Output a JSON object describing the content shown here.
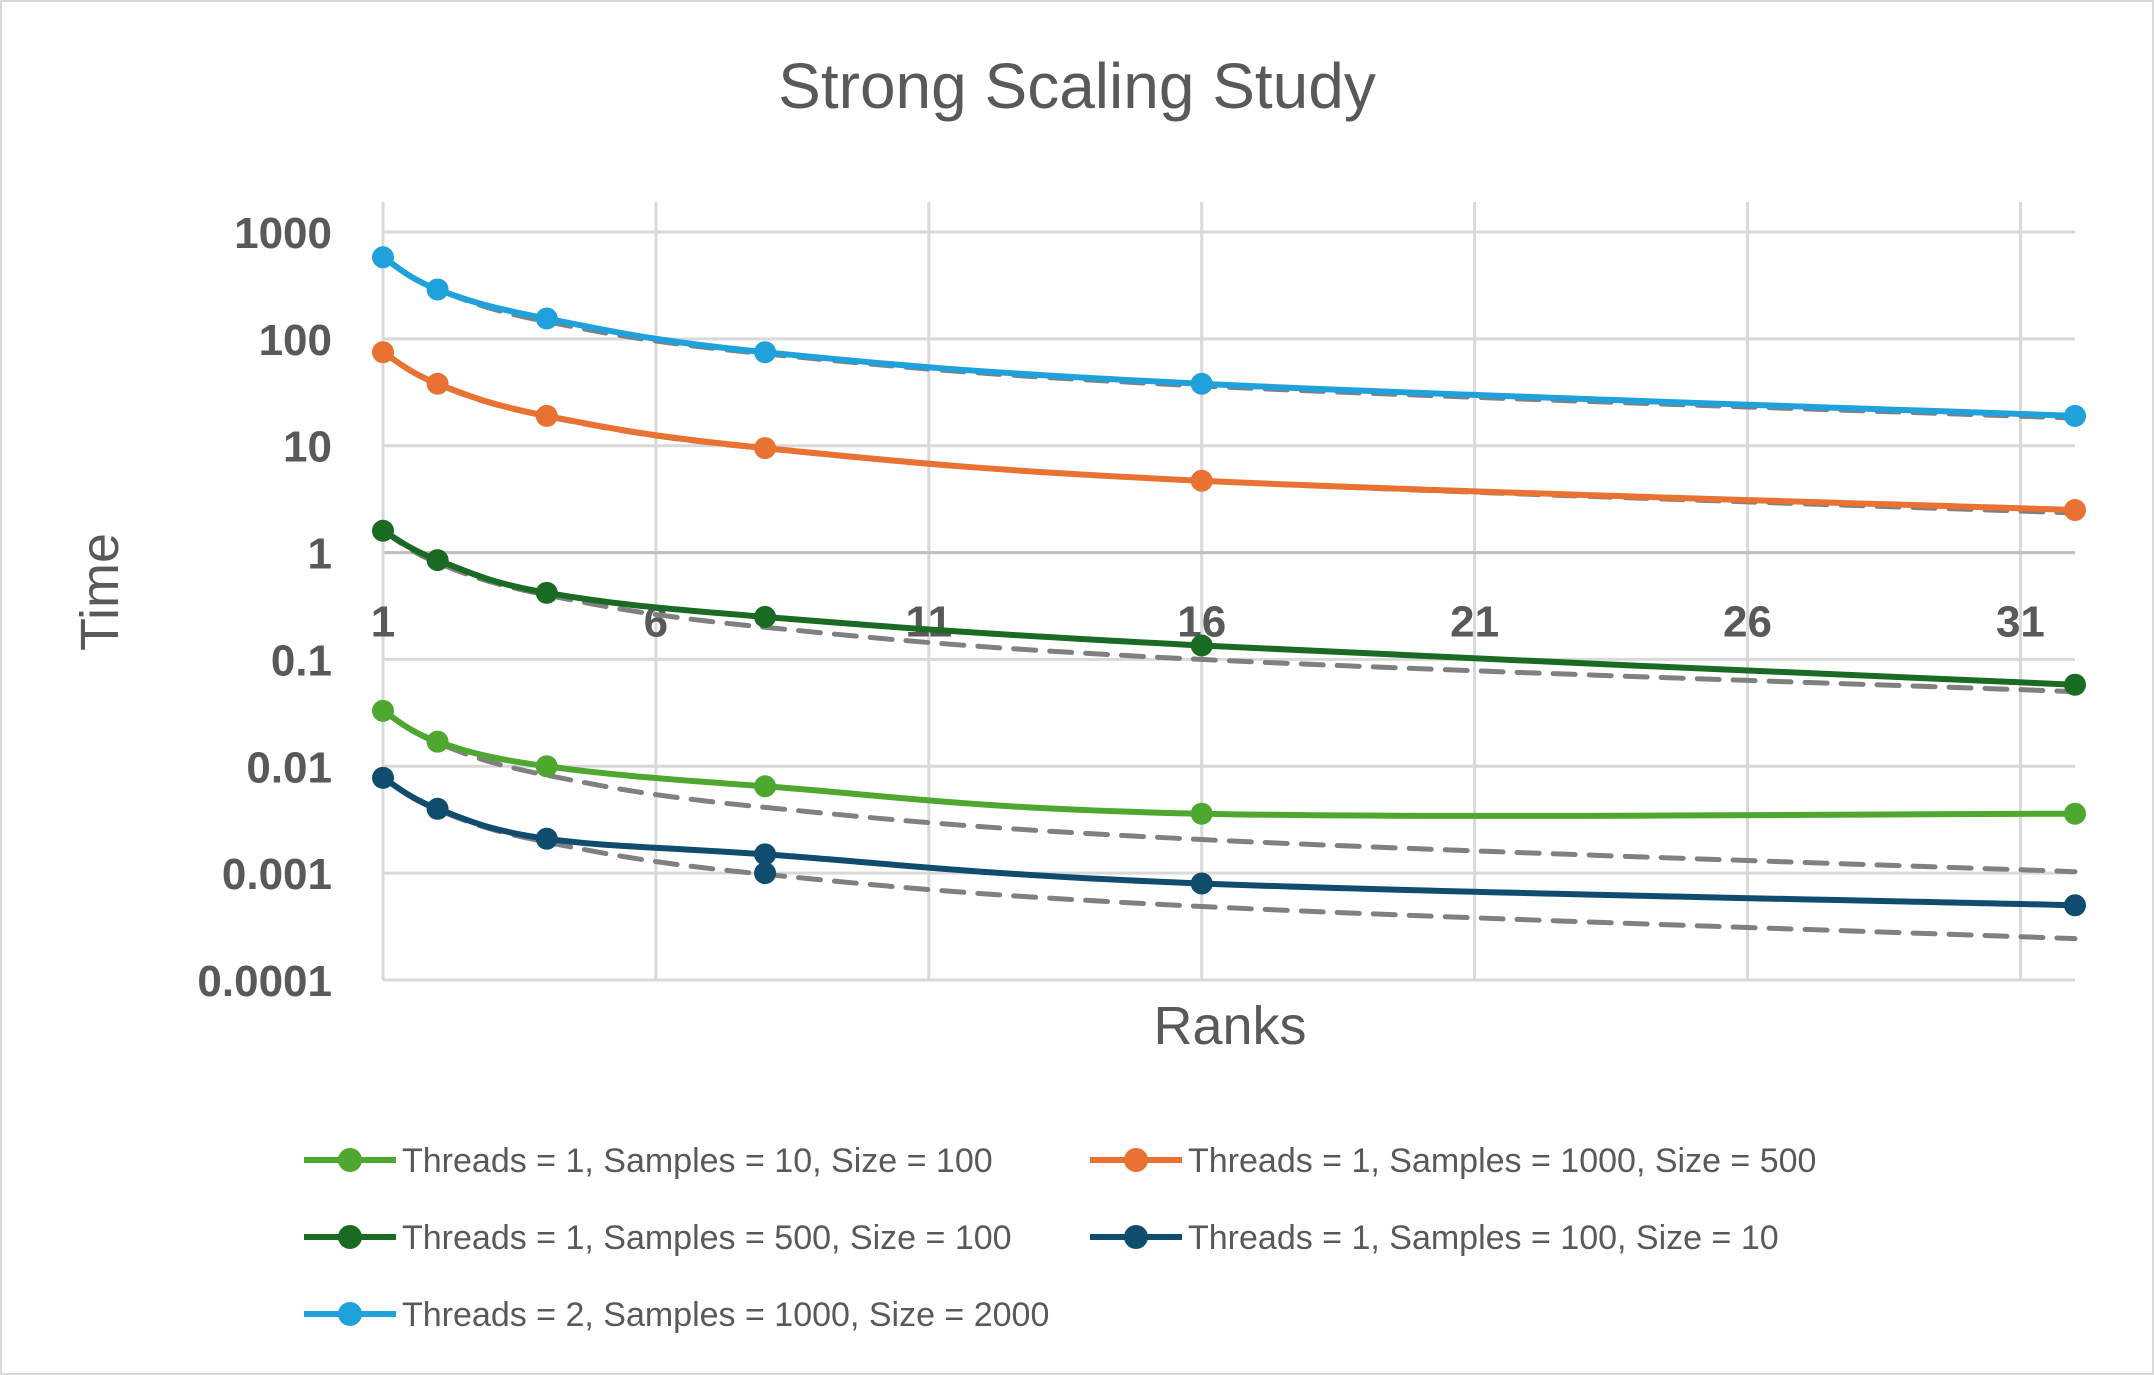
{
  "chart_data": {
    "type": "line",
    "title": "Strong Scaling Study",
    "xlabel": "Ranks",
    "ylabel": "Time",
    "xlim": [
      1,
      32
    ],
    "ylim": [
      0.0001,
      1000
    ],
    "y_scale": "log",
    "x_ticks": [
      "1",
      "6",
      "11",
      "16",
      "21",
      "26",
      "31"
    ],
    "y_ticks": [
      "1000",
      "100",
      "10",
      "1",
      "0.1",
      "0.01",
      "0.001",
      "0.0001"
    ],
    "grid": true,
    "legend_position": "bottom",
    "series": [
      {
        "name": "Threads = 1, Samples = 10, Size = 100",
        "color": "#4ea72e",
        "x": [
          1,
          2,
          4,
          8,
          16,
          32
        ],
        "values": [
          0.033,
          0.017,
          0.01,
          0.0065,
          0.0036,
          0.0036
        ]
      },
      {
        "name": "Threads = 1, Samples = 1000, Size = 500",
        "color": "#e97132",
        "x": [
          1,
          2,
          4,
          8,
          16,
          32
        ],
        "values": [
          75,
          38,
          19,
          9.5,
          4.7,
          2.5
        ]
      },
      {
        "name": "Threads = 1, Samples = 500, Size = 100",
        "color": "#196b24",
        "x": [
          1,
          2,
          4,
          8,
          16,
          32
        ],
        "values": [
          1.6,
          0.85,
          0.42,
          0.25,
          0.135,
          0.058
        ]
      },
      {
        "name": "Threads = 1, Samples = 100, Size = 10",
        "color": "#0f4c6e",
        "x": [
          1,
          2,
          4,
          8,
          16,
          32
        ],
        "values": [
          0.0078,
          0.004,
          0.0021,
          0.0015,
          0.0008,
          0.0005
        ]
      },
      {
        "name": "Threads = 2, Samples = 1000, Size = 2000",
        "color": "#1fa2dc",
        "x": [
          1,
          2,
          4,
          8,
          16,
          32
        ],
        "values": [
          580,
          290,
          155,
          75,
          38,
          19
        ]
      }
    ],
    "ideal_scaling": {
      "color": "#808080",
      "style": "dashed",
      "base_values": [
        580,
        75,
        1.6,
        0.033,
        0.0078
      ],
      "x": [
        1,
        2,
        4,
        8,
        16,
        32
      ]
    },
    "extra_markers": [
      {
        "x": 8,
        "y": 0.001,
        "color": "#0f4c6e"
      }
    ]
  }
}
